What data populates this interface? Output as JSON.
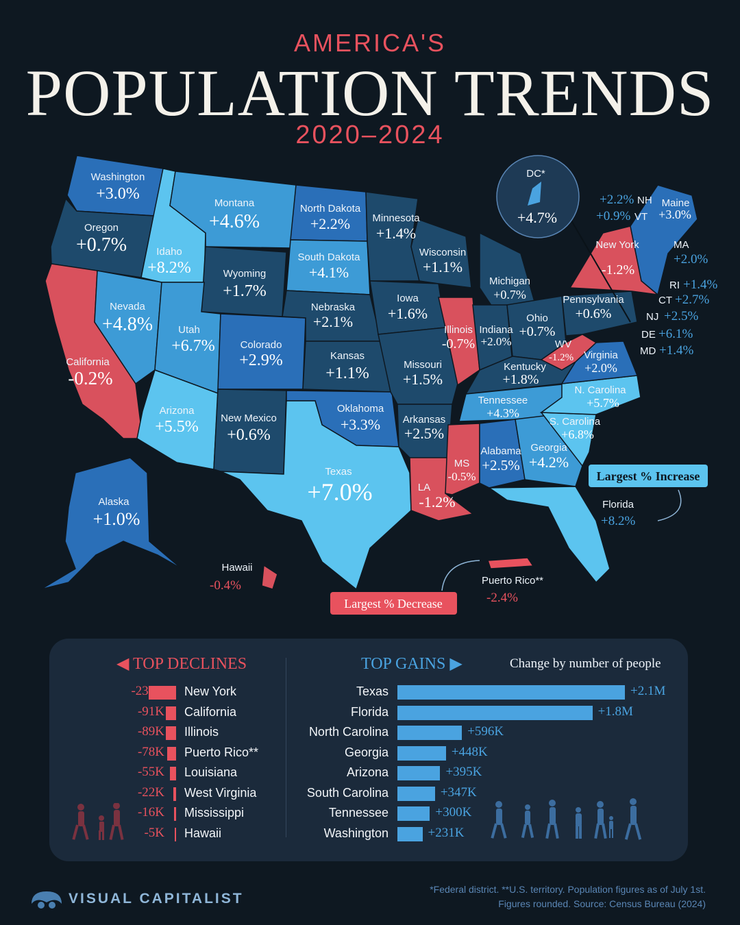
{
  "header": {
    "kicker": "AMERICA'S",
    "title": "POPULATION TRENDS",
    "years": "2020–2024"
  },
  "colors": {
    "decline": "#e8525e",
    "low_growth": "#1e4a6c",
    "mid_growth": "#2a6fb8",
    "high_growth": "#3d9bd6",
    "very_high_growth": "#5cc4ef",
    "background": "#0e1821"
  },
  "map": {
    "states": {
      "washington": {
        "name": "Washington",
        "value": "+3.0%"
      },
      "oregon": {
        "name": "Oregon",
        "value": "+0.7%"
      },
      "california": {
        "name": "California",
        "value": "-0.2%"
      },
      "nevada": {
        "name": "Nevada",
        "value": "+4.8%"
      },
      "idaho": {
        "name": "Idaho",
        "value": "+8.2%"
      },
      "montana": {
        "name": "Montana",
        "value": "+4.6%"
      },
      "wyoming": {
        "name": "Wyoming",
        "value": "+1.7%"
      },
      "utah": {
        "name": "Utah",
        "value": "+6.7%"
      },
      "colorado": {
        "name": "Colorado",
        "value": "+2.9%"
      },
      "arizona": {
        "name": "Arizona",
        "value": "+5.5%"
      },
      "new_mexico": {
        "name": "New Mexico",
        "value": "+0.6%"
      },
      "north_dakota": {
        "name": "North Dakota",
        "value": "+2.2%"
      },
      "south_dakota": {
        "name": "South Dakota",
        "value": "+4.1%"
      },
      "nebraska": {
        "name": "Nebraska",
        "value": "+2.1%"
      },
      "kansas": {
        "name": "Kansas",
        "value": "+1.1%"
      },
      "oklahoma": {
        "name": "Oklahoma",
        "value": "+3.3%"
      },
      "texas": {
        "name": "Texas",
        "value": "+7.0%"
      },
      "minnesota": {
        "name": "Minnesota",
        "value": "+1.4%"
      },
      "iowa": {
        "name": "Iowa",
        "value": "+1.6%"
      },
      "missouri": {
        "name": "Missouri",
        "value": "+1.5%"
      },
      "arkansas": {
        "name": "Arkansas",
        "value": "+2.5%"
      },
      "louisiana": {
        "name": "LA",
        "value": "-1.2%"
      },
      "wisconsin": {
        "name": "Wisconsin",
        "value": "+1.1%"
      },
      "illinois": {
        "name": "Illinois",
        "value": "-0.7%"
      },
      "michigan": {
        "name": "Michigan",
        "value": "+0.7%"
      },
      "indiana": {
        "name": "Indiana",
        "value": "+2.0%"
      },
      "ohio": {
        "name": "Ohio",
        "value": "+0.7%"
      },
      "kentucky": {
        "name": "Kentucky",
        "value": "+1.8%"
      },
      "tennessee": {
        "name": "Tennessee",
        "value": "+4.3%"
      },
      "mississippi": {
        "name": "MS",
        "value": "-0.5%"
      },
      "alabama": {
        "name": "Alabama",
        "value": "+2.5%"
      },
      "georgia": {
        "name": "Georgia",
        "value": "+4.2%"
      },
      "florida": {
        "name": "Florida",
        "value": "+8.2%"
      },
      "south_carolina": {
        "name": "S. Carolina",
        "value": "+6.8%"
      },
      "north_carolina": {
        "name": "N. Carolina",
        "value": "+5.7%"
      },
      "virginia": {
        "name": "Virginia",
        "value": "+2.0%"
      },
      "west_virginia": {
        "name": "WV",
        "value": "-1.2%"
      },
      "pennsylvania": {
        "name": "Pennsylvania",
        "value": "+0.6%"
      },
      "new_york": {
        "name": "New York",
        "value": "-1.2%"
      },
      "maine": {
        "name": "Maine",
        "value": "+3.0%"
      },
      "alaska": {
        "name": "Alaska",
        "value": "+1.0%"
      },
      "hawaii": {
        "name": "Hawaii",
        "value": "-0.4%"
      },
      "puerto_rico": {
        "name": "Puerto Rico**",
        "value": "-2.4%"
      },
      "dc": {
        "name": "DC*",
        "value": "+4.7%"
      }
    },
    "small_states": [
      {
        "abbr": "NH",
        "value": "+2.2%"
      },
      {
        "abbr": "VT",
        "value": "+0.9%"
      },
      {
        "abbr": "MA",
        "value": "+2.0%"
      },
      {
        "abbr": "RI",
        "value": "+1.4%"
      },
      {
        "abbr": "CT",
        "value": "+2.7%"
      },
      {
        "abbr": "NJ",
        "value": "+2.5%"
      },
      {
        "abbr": "DE",
        "value": "+6.1%"
      },
      {
        "abbr": "MD",
        "value": "+1.4%"
      }
    ],
    "callouts": {
      "largest_increase": "Largest % Increase",
      "largest_decrease": "Largest % Decrease"
    }
  },
  "declines": {
    "heading": "TOP DECLINES",
    "rows": [
      {
        "value": "-238K",
        "name": "New York",
        "amount": 238
      },
      {
        "value": "-91K",
        "name": "California",
        "amount": 91
      },
      {
        "value": "-89K",
        "name": "Illinois",
        "amount": 89
      },
      {
        "value": "-78K",
        "name": "Puerto Rico**",
        "amount": 78
      },
      {
        "value": "-55K",
        "name": "Louisiana",
        "amount": 55
      },
      {
        "value": "-22K",
        "name": "West Virginia",
        "amount": 22
      },
      {
        "value": "-16K",
        "name": "Mississippi",
        "amount": 16
      },
      {
        "value": "-5K",
        "name": "Hawaii",
        "amount": 5
      }
    ]
  },
  "gains": {
    "heading": "TOP GAINS",
    "note": "Change by number of people",
    "rows": [
      {
        "name": "Texas",
        "value": "+2.1M",
        "amount": 2100
      },
      {
        "name": "Florida",
        "value": "+1.8M",
        "amount": 1800
      },
      {
        "name": "North Carolina",
        "value": "+596K",
        "amount": 596
      },
      {
        "name": "Georgia",
        "value": "+448K",
        "amount": 448
      },
      {
        "name": "Arizona",
        "value": "+395K",
        "amount": 395
      },
      {
        "name": "South Carolina",
        "value": "+347K",
        "amount": 347
      },
      {
        "name": "Tennessee",
        "value": "+300K",
        "amount": 300
      },
      {
        "name": "Washington",
        "value": "+231K",
        "amount": 231
      }
    ]
  },
  "footer": {
    "brand": "VISUAL CAPITALIST",
    "note_line1": "*Federal district. **U.S. territory. Population figures as of July 1st.",
    "note_line2": "Figures rounded. Source: Census Bureau (2024)"
  }
}
